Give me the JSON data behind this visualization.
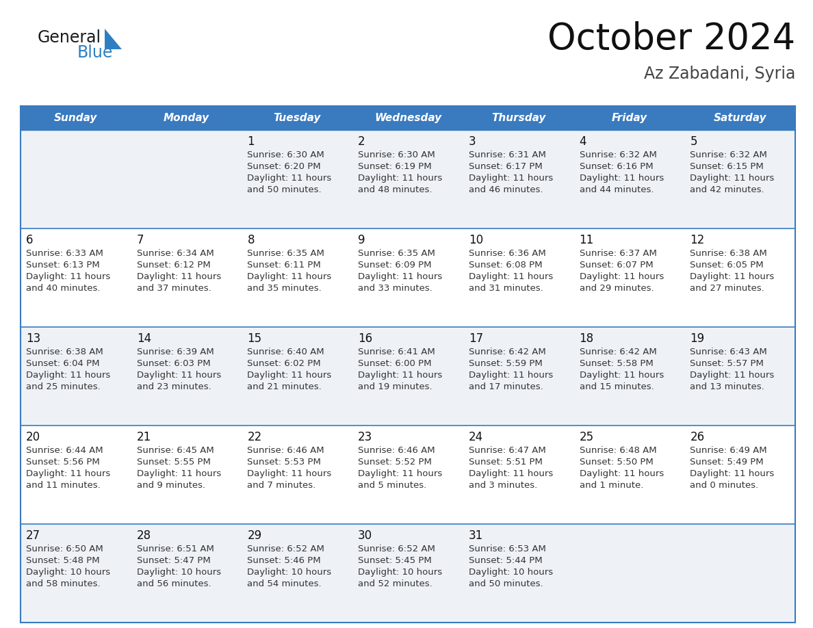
{
  "title": "October 2024",
  "subtitle": "Az Zabadani, Syria",
  "days_of_week": [
    "Sunday",
    "Monday",
    "Tuesday",
    "Wednesday",
    "Thursday",
    "Friday",
    "Saturday"
  ],
  "header_bg": "#3a7abf",
  "header_text": "#ffffff",
  "row_bg_light": "#eef2f7",
  "row_bg_white": "#ffffff",
  "cell_border_color": "#3a7abf",
  "day_num_color": "#111111",
  "info_color": "#333333",
  "logo_general_color": "#1a1a1a",
  "logo_blue_color": "#2e7fc2",
  "logo_triangle_color": "#2e7fc2",
  "calendar_data": [
    {
      "day": 1,
      "col": 2,
      "row": 0,
      "sunrise": "6:30 AM",
      "sunset": "6:20 PM",
      "dl1": "Daylight: 11 hours",
      "dl2": "and 50 minutes."
    },
    {
      "day": 2,
      "col": 3,
      "row": 0,
      "sunrise": "6:30 AM",
      "sunset": "6:19 PM",
      "dl1": "Daylight: 11 hours",
      "dl2": "and 48 minutes."
    },
    {
      "day": 3,
      "col": 4,
      "row": 0,
      "sunrise": "6:31 AM",
      "sunset": "6:17 PM",
      "dl1": "Daylight: 11 hours",
      "dl2": "and 46 minutes."
    },
    {
      "day": 4,
      "col": 5,
      "row": 0,
      "sunrise": "6:32 AM",
      "sunset": "6:16 PM",
      "dl1": "Daylight: 11 hours",
      "dl2": "and 44 minutes."
    },
    {
      "day": 5,
      "col": 6,
      "row": 0,
      "sunrise": "6:32 AM",
      "sunset": "6:15 PM",
      "dl1": "Daylight: 11 hours",
      "dl2": "and 42 minutes."
    },
    {
      "day": 6,
      "col": 0,
      "row": 1,
      "sunrise": "6:33 AM",
      "sunset": "6:13 PM",
      "dl1": "Daylight: 11 hours",
      "dl2": "and 40 minutes."
    },
    {
      "day": 7,
      "col": 1,
      "row": 1,
      "sunrise": "6:34 AM",
      "sunset": "6:12 PM",
      "dl1": "Daylight: 11 hours",
      "dl2": "and 37 minutes."
    },
    {
      "day": 8,
      "col": 2,
      "row": 1,
      "sunrise": "6:35 AM",
      "sunset": "6:11 PM",
      "dl1": "Daylight: 11 hours",
      "dl2": "and 35 minutes."
    },
    {
      "day": 9,
      "col": 3,
      "row": 1,
      "sunrise": "6:35 AM",
      "sunset": "6:09 PM",
      "dl1": "Daylight: 11 hours",
      "dl2": "and 33 minutes."
    },
    {
      "day": 10,
      "col": 4,
      "row": 1,
      "sunrise": "6:36 AM",
      "sunset": "6:08 PM",
      "dl1": "Daylight: 11 hours",
      "dl2": "and 31 minutes."
    },
    {
      "day": 11,
      "col": 5,
      "row": 1,
      "sunrise": "6:37 AM",
      "sunset": "6:07 PM",
      "dl1": "Daylight: 11 hours",
      "dl2": "and 29 minutes."
    },
    {
      "day": 12,
      "col": 6,
      "row": 1,
      "sunrise": "6:38 AM",
      "sunset": "6:05 PM",
      "dl1": "Daylight: 11 hours",
      "dl2": "and 27 minutes."
    },
    {
      "day": 13,
      "col": 0,
      "row": 2,
      "sunrise": "6:38 AM",
      "sunset": "6:04 PM",
      "dl1": "Daylight: 11 hours",
      "dl2": "and 25 minutes."
    },
    {
      "day": 14,
      "col": 1,
      "row": 2,
      "sunrise": "6:39 AM",
      "sunset": "6:03 PM",
      "dl1": "Daylight: 11 hours",
      "dl2": "and 23 minutes."
    },
    {
      "day": 15,
      "col": 2,
      "row": 2,
      "sunrise": "6:40 AM",
      "sunset": "6:02 PM",
      "dl1": "Daylight: 11 hours",
      "dl2": "and 21 minutes."
    },
    {
      "day": 16,
      "col": 3,
      "row": 2,
      "sunrise": "6:41 AM",
      "sunset": "6:00 PM",
      "dl1": "Daylight: 11 hours",
      "dl2": "and 19 minutes."
    },
    {
      "day": 17,
      "col": 4,
      "row": 2,
      "sunrise": "6:42 AM",
      "sunset": "5:59 PM",
      "dl1": "Daylight: 11 hours",
      "dl2": "and 17 minutes."
    },
    {
      "day": 18,
      "col": 5,
      "row": 2,
      "sunrise": "6:42 AM",
      "sunset": "5:58 PM",
      "dl1": "Daylight: 11 hours",
      "dl2": "and 15 minutes."
    },
    {
      "day": 19,
      "col": 6,
      "row": 2,
      "sunrise": "6:43 AM",
      "sunset": "5:57 PM",
      "dl1": "Daylight: 11 hours",
      "dl2": "and 13 minutes."
    },
    {
      "day": 20,
      "col": 0,
      "row": 3,
      "sunrise": "6:44 AM",
      "sunset": "5:56 PM",
      "dl1": "Daylight: 11 hours",
      "dl2": "and 11 minutes."
    },
    {
      "day": 21,
      "col": 1,
      "row": 3,
      "sunrise": "6:45 AM",
      "sunset": "5:55 PM",
      "dl1": "Daylight: 11 hours",
      "dl2": "and 9 minutes."
    },
    {
      "day": 22,
      "col": 2,
      "row": 3,
      "sunrise": "6:46 AM",
      "sunset": "5:53 PM",
      "dl1": "Daylight: 11 hours",
      "dl2": "and 7 minutes."
    },
    {
      "day": 23,
      "col": 3,
      "row": 3,
      "sunrise": "6:46 AM",
      "sunset": "5:52 PM",
      "dl1": "Daylight: 11 hours",
      "dl2": "and 5 minutes."
    },
    {
      "day": 24,
      "col": 4,
      "row": 3,
      "sunrise": "6:47 AM",
      "sunset": "5:51 PM",
      "dl1": "Daylight: 11 hours",
      "dl2": "and 3 minutes."
    },
    {
      "day": 25,
      "col": 5,
      "row": 3,
      "sunrise": "6:48 AM",
      "sunset": "5:50 PM",
      "dl1": "Daylight: 11 hours",
      "dl2": "and 1 minute."
    },
    {
      "day": 26,
      "col": 6,
      "row": 3,
      "sunrise": "6:49 AM",
      "sunset": "5:49 PM",
      "dl1": "Daylight: 11 hours",
      "dl2": "and 0 minutes."
    },
    {
      "day": 27,
      "col": 0,
      "row": 4,
      "sunrise": "6:50 AM",
      "sunset": "5:48 PM",
      "dl1": "Daylight: 10 hours",
      "dl2": "and 58 minutes."
    },
    {
      "day": 28,
      "col": 1,
      "row": 4,
      "sunrise": "6:51 AM",
      "sunset": "5:47 PM",
      "dl1": "Daylight: 10 hours",
      "dl2": "and 56 minutes."
    },
    {
      "day": 29,
      "col": 2,
      "row": 4,
      "sunrise": "6:52 AM",
      "sunset": "5:46 PM",
      "dl1": "Daylight: 10 hours",
      "dl2": "and 54 minutes."
    },
    {
      "day": 30,
      "col": 3,
      "row": 4,
      "sunrise": "6:52 AM",
      "sunset": "5:45 PM",
      "dl1": "Daylight: 10 hours",
      "dl2": "and 52 minutes."
    },
    {
      "day": 31,
      "col": 4,
      "row": 4,
      "sunrise": "6:53 AM",
      "sunset": "5:44 PM",
      "dl1": "Daylight: 10 hours",
      "dl2": "and 50 minutes."
    }
  ]
}
